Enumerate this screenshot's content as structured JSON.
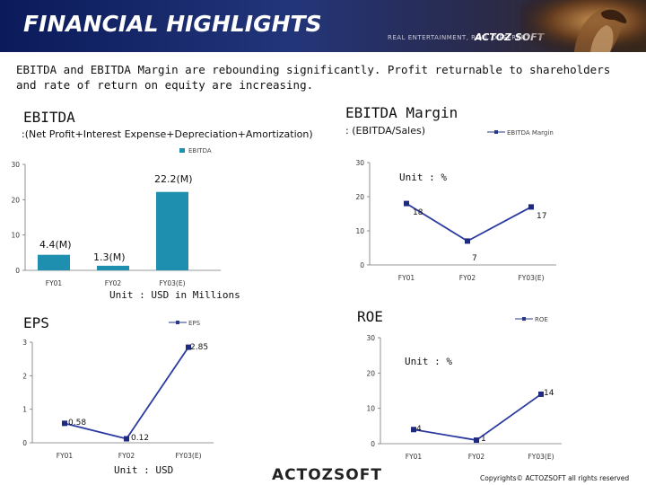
{
  "header": {
    "title": "FINANCIAL  HIGHLIGHTS",
    "tagline": "REAL ENTERTAINMENT, REAL DIFFERENT",
    "brand": "ACTOZ SOFT"
  },
  "intro": "EBITDA and EBITDA Margin are rebounding significantly. Profit returnable to shareholders and rate of return on equity  are increasing.",
  "footer": {
    "logo": "ACTOZSOFT",
    "copyright": "Copyrights© ACTOZSOFT all rights reserved"
  },
  "chart_data": [
    {
      "type": "bar",
      "title": "EBITDA",
      "subtitle": ":(Net Profit+Interest Expense+Depreciation+Amortization)",
      "legend": "EBITDA",
      "categories": [
        "FY01",
        "FY02",
        "FY03(E)"
      ],
      "values": [
        4.4,
        1.3,
        22.2
      ],
      "data_labels": [
        "4.4(M)",
        "1.3(M)",
        "22.2(M)"
      ],
      "yticks": [
        "0",
        "10",
        "20",
        "30"
      ],
      "ylim": [
        0,
        30
      ],
      "unit": "Unit : USD in Millions",
      "color": "#1f8fb0"
    },
    {
      "type": "line",
      "title": "EBITDA  Margin",
      "subtitle": ": (EBITDA/Sales)",
      "legend": "EBITDA Margin",
      "categories": [
        "FY01",
        "FY02",
        "FY03(E)"
      ],
      "values": [
        18,
        7,
        17
      ],
      "data_labels": [
        "18",
        "7",
        "17"
      ],
      "yticks": [
        "0",
        "10",
        "20",
        "30"
      ],
      "ylim": [
        0,
        30
      ],
      "unit": "Unit :        %",
      "color": "#2a3a8a"
    },
    {
      "type": "line",
      "title": "EPS",
      "legend": "EPS",
      "categories": [
        "FY01",
        "FY02",
        "FY03(E)"
      ],
      "values": [
        0.58,
        0.12,
        2.85
      ],
      "data_labels": [
        "0.58",
        "0.12",
        "2.85"
      ],
      "yticks": [
        "0",
        "1",
        "2",
        "3"
      ],
      "ylim": [
        0,
        3
      ],
      "unit": "Unit :  USD",
      "color": "#2a3a8a"
    },
    {
      "type": "line",
      "title": "ROE",
      "legend": "ROE",
      "categories": [
        "FY01",
        "FY02",
        "FY03(E)"
      ],
      "values": [
        4,
        1,
        14
      ],
      "data_labels": [
        "4",
        "1",
        "14"
      ],
      "yticks": [
        "0",
        "10",
        "20",
        "30"
      ],
      "ylim": [
        0,
        30
      ],
      "unit": "Unit :  %",
      "color": "#2a3a8a"
    }
  ]
}
